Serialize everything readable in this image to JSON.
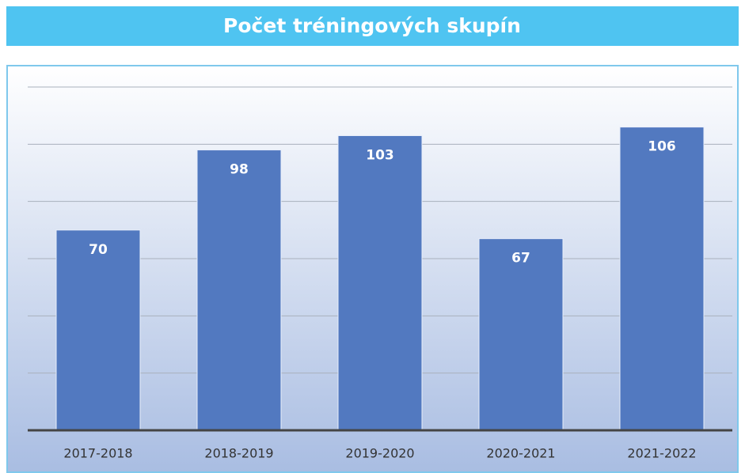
{
  "chart_data": {
    "type": "bar",
    "title": "Počet tréningových skupín",
    "categories": [
      "2017-2018",
      "2018-2019",
      "2019-2020",
      "2020-2021",
      "2021-2022"
    ],
    "values": [
      70,
      98,
      103,
      67,
      106
    ],
    "color": "#5279c0",
    "ylim": [
      0,
      120
    ],
    "yticks": [
      0,
      20,
      40,
      60,
      80,
      100,
      120
    ],
    "grid": true
  }
}
